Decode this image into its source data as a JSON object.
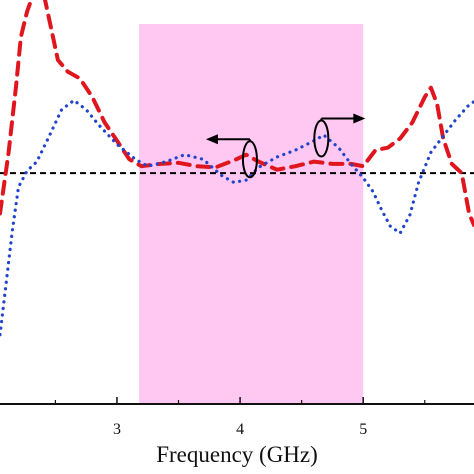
{
  "chart_data": {
    "type": "line",
    "xlabel": "Frequency (GHz)",
    "ylabel": "",
    "xlim": [
      2.05,
      5.9
    ],
    "ylim": [
      -2.0,
      1.5
    ],
    "x_ticks": [
      "3",
      "4",
      "5"
    ],
    "x_tick_values": [
      3,
      4,
      5
    ],
    "grid": false,
    "reference_line": {
      "y": 0,
      "style": "black dashed"
    },
    "highlight_band": {
      "x_start": 3.18,
      "x_end": 5.0,
      "color": "#ffc8f2"
    },
    "annotations": [
      {
        "text": "",
        "kind": "ellipse-arrow",
        "arrow": "left",
        "x": 4.08,
        "y": 0.12,
        "series": "red dashed"
      },
      {
        "text": "",
        "kind": "ellipse-arrow",
        "arrow": "right",
        "x": 4.66,
        "y": 0.3,
        "series": "blue dotted"
      }
    ],
    "series": [
      {
        "name": "",
        "color": "#e0161e",
        "style": "dashed",
        "x": [
          2.05,
          2.12,
          2.18,
          2.22,
          2.27,
          2.33,
          2.4,
          2.46,
          2.52,
          2.6,
          2.7,
          2.8,
          2.9,
          3.0,
          3.1,
          3.2,
          3.35,
          3.5,
          3.65,
          3.8,
          3.95,
          4.05,
          4.15,
          4.3,
          4.45,
          4.6,
          4.75,
          4.9,
          5.0,
          5.1,
          5.2,
          5.3,
          5.4,
          5.5,
          5.55,
          5.6,
          5.65,
          5.72,
          5.8,
          5.86,
          5.9
        ],
        "y": [
          -0.35,
          0.18,
          0.75,
          1.18,
          1.4,
          1.58,
          1.58,
          1.28,
          0.98,
          0.88,
          0.82,
          0.66,
          0.44,
          0.28,
          0.12,
          0.06,
          0.08,
          0.09,
          0.06,
          0.05,
          0.11,
          0.16,
          0.1,
          0.03,
          0.06,
          0.1,
          0.08,
          0.08,
          0.06,
          0.2,
          0.22,
          0.3,
          0.44,
          0.66,
          0.74,
          0.6,
          0.3,
          0.08,
          0.0,
          -0.35,
          -0.45
        ]
      },
      {
        "name": "",
        "color": "#2244cc",
        "style": "dotted",
        "x": [
          2.05,
          2.1,
          2.15,
          2.2,
          2.27,
          2.35,
          2.45,
          2.55,
          2.65,
          2.75,
          2.85,
          3.0,
          3.15,
          3.25,
          3.4,
          3.55,
          3.7,
          3.85,
          3.95,
          4.05,
          4.15,
          4.3,
          4.45,
          4.6,
          4.68,
          4.8,
          4.9,
          5.0,
          5.08,
          5.15,
          5.22,
          5.3,
          5.38,
          5.45,
          5.55,
          5.65,
          5.75,
          5.85,
          5.9
        ],
        "y": [
          -1.4,
          -0.95,
          -0.5,
          -0.12,
          0.02,
          0.1,
          0.32,
          0.55,
          0.63,
          0.55,
          0.42,
          0.25,
          0.12,
          0.06,
          0.1,
          0.16,
          0.12,
          -0.02,
          -0.08,
          -0.06,
          0.05,
          0.14,
          0.2,
          0.28,
          0.33,
          0.22,
          0.08,
          -0.04,
          -0.16,
          -0.32,
          -0.46,
          -0.52,
          -0.36,
          -0.08,
          0.18,
          0.32,
          0.46,
          0.58,
          0.62
        ]
      }
    ]
  }
}
